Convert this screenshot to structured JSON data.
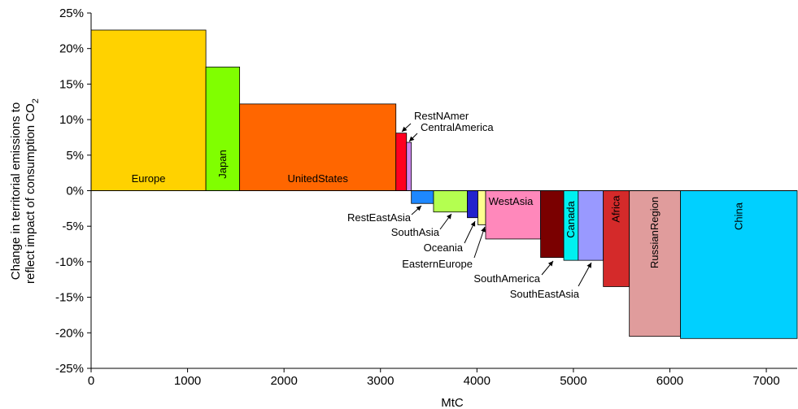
{
  "chart_data": {
    "type": "bar",
    "subtype": "variable-width",
    "xlabel": "MtC",
    "ylabel_lines": [
      "Change in territorial emissions to",
      "reflect impact of consumption CO"
    ],
    "ylabel_subscript": "2",
    "xlim": [
      0,
      7320
    ],
    "ylim": [
      -25,
      25
    ],
    "xticks": [
      0,
      1000,
      2000,
      3000,
      4000,
      5000,
      6000,
      7000
    ],
    "yticks": [
      25,
      20,
      15,
      10,
      5,
      0,
      -5,
      -10,
      -15,
      -20,
      -25
    ],
    "ytick_labels": [
      "25%",
      "20%",
      "15%",
      "10%",
      "5%",
      "0%",
      "-5%",
      "-10%",
      "-15%",
      "-20%",
      "-25%"
    ],
    "grid": false,
    "series": [
      {
        "name": "Europe",
        "x0": 0,
        "x1": 1190,
        "value": 22.6,
        "color": "#FFD200",
        "label_mode": "inside",
        "label_rot": false
      },
      {
        "name": "Japan",
        "x0": 1190,
        "x1": 1540,
        "value": 17.4,
        "color": "#80FF00",
        "label_mode": "inside",
        "label_rot": true
      },
      {
        "name": "UnitedStates",
        "x0": 1540,
        "x1": 3160,
        "value": 12.2,
        "color": "#FF6600",
        "label_mode": "inside",
        "label_rot": false
      },
      {
        "name": "RestNAmer",
        "x0": 3160,
        "x1": 3270,
        "value": 8.1,
        "color": "#FF0020",
        "label_mode": "arrow",
        "label_rot": false
      },
      {
        "name": "CentralAmerica",
        "x0": 3270,
        "x1": 3320,
        "value": 6.8,
        "color": "#CC88EE",
        "label_mode": "arrow",
        "label_rot": false
      },
      {
        "name": "RestEastAsia",
        "x0": 3320,
        "x1": 3550,
        "value": -1.8,
        "color": "#1E88FF",
        "label_mode": "arrow",
        "label_rot": false
      },
      {
        "name": "SouthAsia",
        "x0": 3550,
        "x1": 3900,
        "value": -3.0,
        "color": "#B4FF50",
        "label_mode": "arrow",
        "label_rot": false
      },
      {
        "name": "Oceania",
        "x0": 3900,
        "x1": 4010,
        "value": -3.8,
        "color": "#2222CC",
        "label_mode": "arrow",
        "label_rot": false
      },
      {
        "name": "EasternEurope",
        "x0": 4010,
        "x1": 4090,
        "value": -4.8,
        "color": "#FFFF90",
        "label_mode": "arrow",
        "label_rot": false
      },
      {
        "name": "WestAsia",
        "x0": 4090,
        "x1": 4660,
        "value": -6.8,
        "color": "#FF88BB",
        "label_mode": "inside-top",
        "label_rot": false
      },
      {
        "name": "SouthAmerica",
        "x0": 4660,
        "x1": 4900,
        "value": -9.4,
        "color": "#7A0000",
        "label_mode": "arrow",
        "label_rot": false
      },
      {
        "name": "Canada",
        "x0": 4900,
        "x1": 5050,
        "value": -9.8,
        "color": "#00F0F0",
        "label_mode": "inside",
        "label_rot": true
      },
      {
        "name": "SouthEastAsia",
        "x0": 5050,
        "x1": 5310,
        "value": -9.8,
        "color": "#9999FF",
        "label_mode": "arrow",
        "label_rot": false
      },
      {
        "name": "Africa",
        "x0": 5310,
        "x1": 5580,
        "value": -13.5,
        "color": "#D42A2A",
        "label_mode": "inside",
        "label_rot": true
      },
      {
        "name": "RussianRegion",
        "x0": 5580,
        "x1": 6110,
        "value": -20.5,
        "color": "#E09C9C",
        "label_mode": "inside",
        "label_rot": true
      },
      {
        "name": "China",
        "x0": 6110,
        "x1": 7320,
        "value": -20.8,
        "color": "#00D0FF",
        "label_mode": "inside",
        "label_rot": true
      }
    ]
  }
}
